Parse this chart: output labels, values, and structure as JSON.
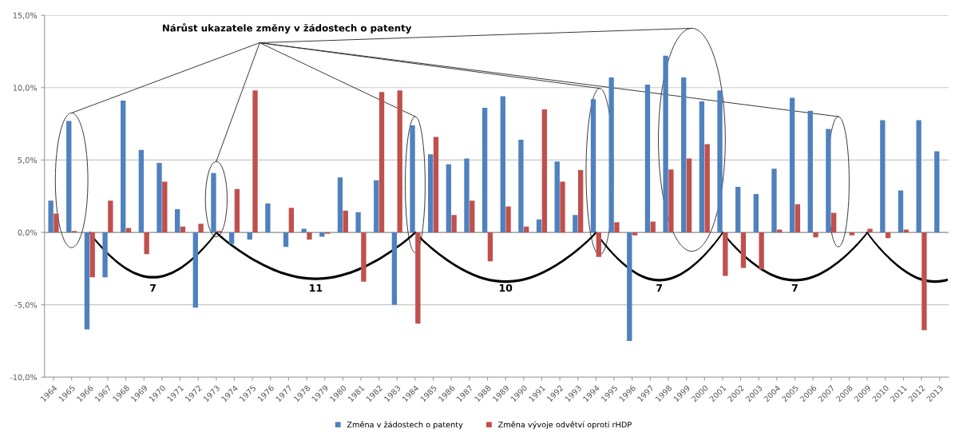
{
  "chart_data": {
    "type": "bar",
    "categories": [
      "1964",
      "1965",
      "1966",
      "1967",
      "1968",
      "1969",
      "1970",
      "1971",
      "1972",
      "1973",
      "1974",
      "1975",
      "1976",
      "1977",
      "1978",
      "1979",
      "1980",
      "1981",
      "1982",
      "1983",
      "1984",
      "1985",
      "1986",
      "1987",
      "1988",
      "1989",
      "1990",
      "1991",
      "1992",
      "1993",
      "1994",
      "1995",
      "1996",
      "1997",
      "1998",
      "1999",
      "2000",
      "2001",
      "2002",
      "2003",
      "2004",
      "2005",
      "2006",
      "2007",
      "2008",
      "2009",
      "2010",
      "2011",
      "2012",
      "2013"
    ],
    "series": [
      {
        "name": "Změna v žádostech o patenty",
        "color": "#4f81bd",
        "values": [
          2.2,
          7.7,
          -6.7,
          -3.1,
          9.1,
          5.7,
          4.8,
          1.6,
          -5.2,
          4.1,
          -0.8,
          -0.5,
          2.0,
          -1.0,
          0.25,
          -0.3,
          3.8,
          1.4,
          3.6,
          -5.0,
          7.4,
          5.4,
          4.7,
          5.1,
          8.6,
          9.4,
          6.4,
          0.9,
          4.9,
          1.2,
          9.2,
          10.7,
          -7.5,
          10.2,
          12.2,
          10.7,
          9.05,
          9.8,
          3.15,
          2.65,
          4.4,
          9.3,
          8.4,
          7.15,
          0.0,
          0.0,
          7.75,
          2.9,
          7.75,
          5.6
        ]
      },
      {
        "name": "Změna vývoje odvětví oproti rHDP",
        "color": "#c0504d",
        "values": [
          1.3,
          0.1,
          -3.1,
          2.2,
          0.3,
          -1.5,
          3.5,
          0.4,
          0.6,
          0.1,
          3.0,
          9.8,
          0.0,
          1.7,
          -0.5,
          -0.1,
          1.5,
          -3.4,
          9.7,
          9.8,
          -6.3,
          6.6,
          1.2,
          2.2,
          -2.0,
          1.8,
          0.4,
          8.5,
          3.5,
          4.3,
          -1.7,
          0.7,
          -0.2,
          0.75,
          4.35,
          5.1,
          6.1,
          -3.0,
          -2.45,
          -2.55,
          0.2,
          1.95,
          -0.35,
          1.35,
          -0.2,
          0.25,
          -0.4,
          0.2,
          -6.75,
          0.0
        ]
      }
    ],
    "ylim": [
      -10,
      15
    ],
    "yticks": [
      {
        "value": -10,
        "label": "-10,0%"
      },
      {
        "value": -5,
        "label": "-5,0%"
      },
      {
        "value": 0,
        "label": "0,0%"
      },
      {
        "value": 5,
        "label": "5,0%"
      },
      {
        "value": 10,
        "label": "10,0%"
      },
      {
        "value": 15,
        "label": "15,0%"
      }
    ],
    "grid": "y",
    "legend": "bottom",
    "annotations": [
      "Nárůst ukazatele změny v žádostech o patenty",
      "7",
      "11",
      "10",
      "7",
      "7"
    ]
  }
}
